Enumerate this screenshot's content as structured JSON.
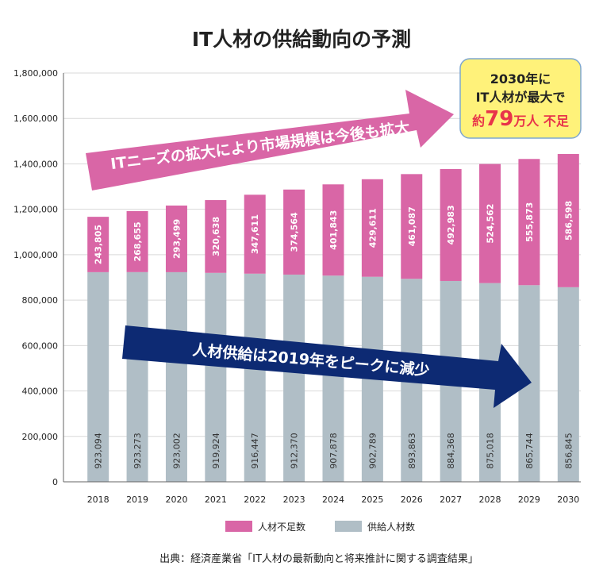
{
  "colors": {
    "shortage": "#d966a6",
    "supply": "#b0bec6",
    "arrow_pink": "#d966a6",
    "arrow_navy": "#0d2a73",
    "callout_bg": "#fff27a",
    "callout_border": "#7fa7cf",
    "highlight_red": "#e8334a"
  },
  "chart_data": {
    "type": "bar",
    "stacked": true,
    "title": "IT人材の供給動向の予測",
    "categories": [
      "2018",
      "2019",
      "2020",
      "2021",
      "2022",
      "2023",
      "2024",
      "2025",
      "2026",
      "2027",
      "2028",
      "2029",
      "2030"
    ],
    "series": [
      {
        "name": "供給人材数",
        "values": [
          923094,
          923273,
          923002,
          919924,
          916447,
          912370,
          907878,
          902789,
          893863,
          884368,
          875018,
          865744,
          856845
        ],
        "labels": [
          "923,094",
          "923,273",
          "923,002",
          "919,924",
          "916,447",
          "912,370",
          "907,878",
          "902,789",
          "893,863",
          "884,368",
          "875,018",
          "865,744",
          "856,845"
        ]
      },
      {
        "name": "人材不足数",
        "values": [
          243805,
          268655,
          293499,
          320638,
          347611,
          374564,
          401843,
          429611,
          461087,
          492983,
          524562,
          555873,
          586598
        ],
        "labels": [
          "243,805",
          "268,655",
          "293,499",
          "320,638",
          "347,611",
          "374,564",
          "401,843",
          "429,611",
          "461,087",
          "492,983",
          "524,562",
          "555,873",
          "586,598"
        ]
      }
    ],
    "ylim": [
      0,
      1800000
    ],
    "yticks": [
      0,
      200000,
      400000,
      600000,
      800000,
      1000000,
      1200000,
      1400000,
      1600000,
      1800000
    ],
    "ytick_labels": [
      "0",
      "200,000",
      "400,000",
      "600,000",
      "800,000",
      "1,000,000",
      "1,200,000",
      "1,400,000",
      "1,600,000",
      "1,800,000"
    ],
    "grid": true,
    "legend_position": "bottom"
  },
  "annotations": {
    "up_arrow_text": "ITニーズの拡大により市場規模は今後も拡大",
    "down_arrow_text": "人材供給は2019年をピークに減少",
    "callout_line1": "2030年に",
    "callout_line2": "IT人材が最大で",
    "callout_line3_prefix": "約",
    "callout_line3_number": "79",
    "callout_line3_suffix": "万人 不足"
  },
  "source": "出典：経済産業省「IT人材の最新動向と将来推計に関する調査結果」"
}
